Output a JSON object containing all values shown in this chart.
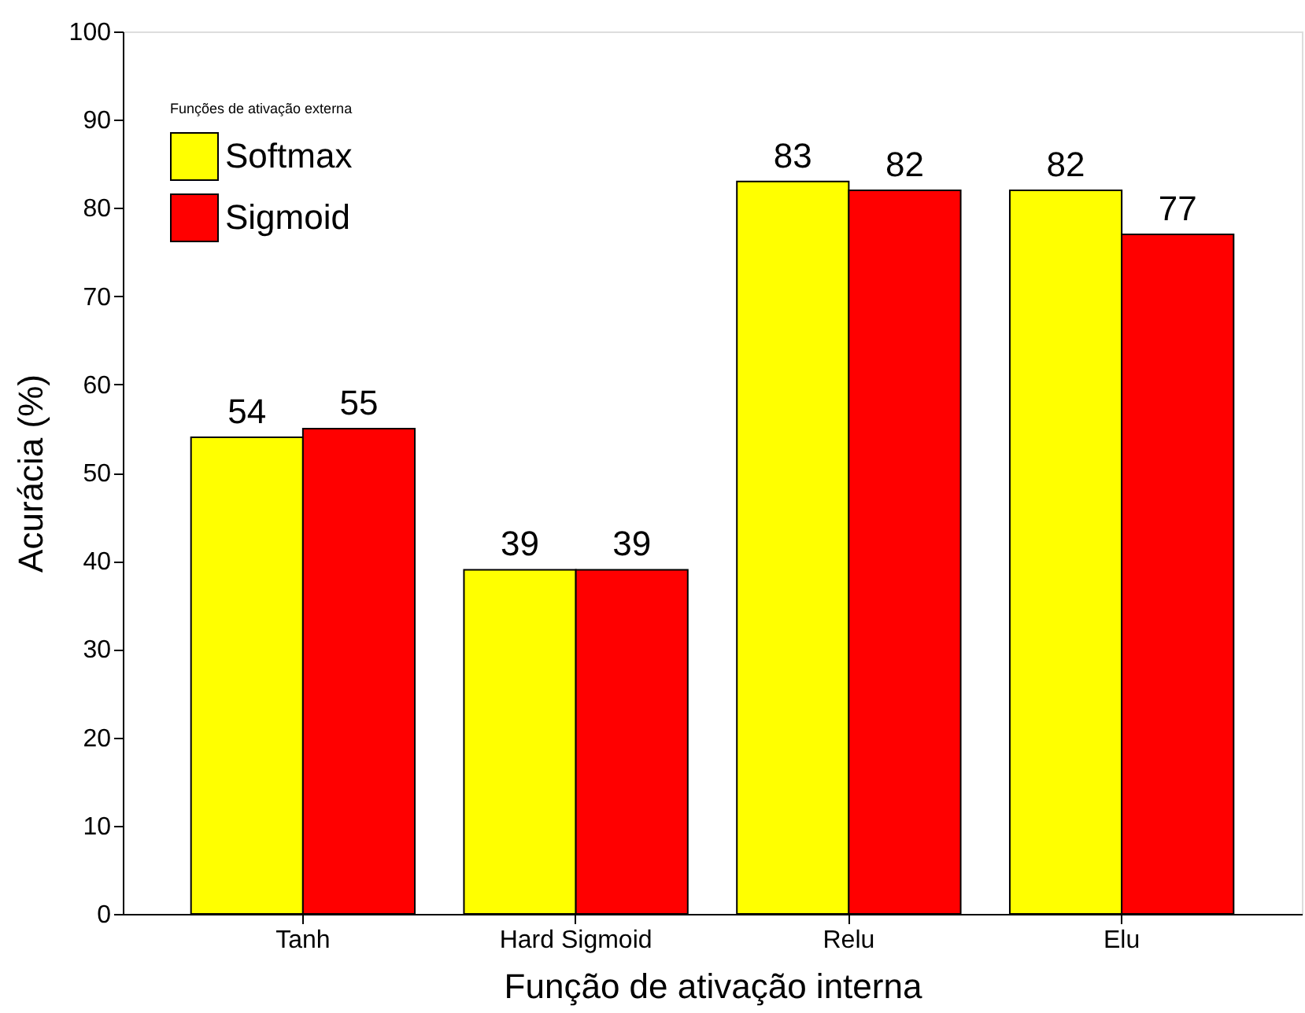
{
  "chart_data": {
    "type": "bar",
    "xlabel": "Função de ativação interna",
    "ylabel": "Acurácia (%)",
    "legend_title": "Funções de ativação externa",
    "categories": [
      "Tanh",
      "Hard Sigmoid",
      "Relu",
      "Elu"
    ],
    "series": [
      {
        "name": "Softmax",
        "color": "#ffff00",
        "values": [
          54,
          39,
          83,
          82
        ]
      },
      {
        "name": "Sigmoid",
        "color": "#ff0000",
        "values": [
          55,
          39,
          82,
          77
        ]
      }
    ],
    "ylim": [
      0,
      100
    ],
    "yticks": [
      0,
      10,
      20,
      30,
      40,
      50,
      60,
      70,
      80,
      90,
      100
    ],
    "data_labels": true,
    "grid": false,
    "legend": "top left"
  }
}
